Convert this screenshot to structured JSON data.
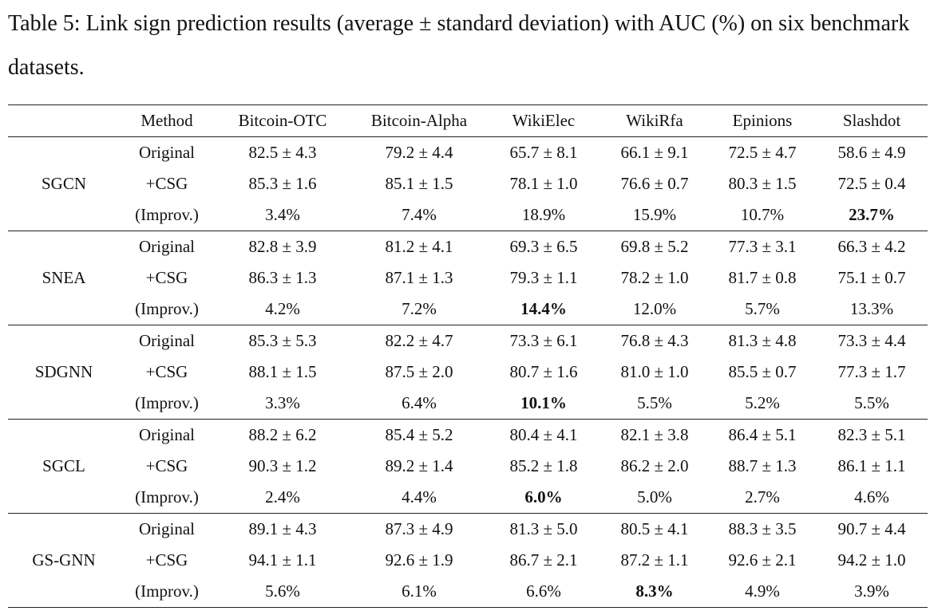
{
  "caption": "Table 5: Link sign prediction results (average ± standard deviation) with AUC (%) on six benchmark datasets.",
  "table": {
    "header": [
      "Method",
      "Bitcoin-OTC",
      "Bitcoin-Alpha",
      "WikiElec",
      "WikiRfa",
      "Epinions",
      "Slashdot"
    ],
    "groups": [
      {
        "model": "SGCN",
        "rows": [
          [
            "Original",
            "82.5 ± 4.3",
            "79.2 ± 4.4",
            "65.7 ± 8.1",
            "66.1 ± 9.1",
            "72.5 ± 4.7",
            "58.6 ± 4.9"
          ],
          [
            "+CSG",
            "85.3 ± 1.6",
            "85.1 ± 1.5",
            "78.1 ± 1.0",
            "76.6 ± 0.7",
            "80.3 ± 1.5",
            "72.5 ± 0.4"
          ],
          [
            "(Improv.)",
            "3.4%",
            "7.4%",
            "18.9%",
            "15.9%",
            "10.7%",
            "23.7%"
          ]
        ]
      },
      {
        "model": "SNEA",
        "rows": [
          [
            "Original",
            "82.8 ± 3.9",
            "81.2 ± 4.1",
            "69.3 ± 6.5",
            "69.8 ± 5.2",
            "77.3 ± 3.1",
            "66.3 ± 4.2"
          ],
          [
            "+CSG",
            "86.3 ± 1.3",
            "87.1 ± 1.3",
            "79.3 ± 1.1",
            "78.2 ± 1.0",
            "81.7 ± 0.8",
            "75.1 ± 0.7"
          ],
          [
            "(Improv.)",
            "4.2%",
            "7.2%",
            "14.4%",
            "12.0%",
            "5.7%",
            "13.3%"
          ]
        ]
      },
      {
        "model": "SDGNN",
        "rows": [
          [
            "Original",
            "85.3 ± 5.3",
            "82.2 ± 4.7",
            "73.3 ± 6.1",
            "76.8 ± 4.3",
            "81.3 ± 4.8",
            "73.3 ± 4.4"
          ],
          [
            "+CSG",
            "88.1 ± 1.5",
            "87.5 ± 2.0",
            "80.7 ± 1.6",
            "81.0 ± 1.0",
            "85.5 ± 0.7",
            "77.3 ± 1.7"
          ],
          [
            "(Improv.)",
            "3.3%",
            "6.4%",
            "10.1%",
            "5.5%",
            "5.2%",
            "5.5%"
          ]
        ]
      },
      {
        "model": "SGCL",
        "rows": [
          [
            "Original",
            "88.2 ± 6.2",
            "85.4 ± 5.2",
            "80.4 ± 4.1",
            "82.1 ± 3.8",
            "86.4 ± 5.1",
            "82.3 ± 5.1"
          ],
          [
            "+CSG",
            "90.3 ± 1.2",
            "89.2 ± 1.4",
            "85.2 ± 1.8",
            "86.2 ± 2.0",
            "88.7 ± 1.3",
            "86.1 ± 1.1"
          ],
          [
            "(Improv.)",
            "2.4%",
            "4.4%",
            "6.0%",
            "5.0%",
            "2.7%",
            "4.6%"
          ]
        ]
      },
      {
        "model": "GS-GNN",
        "rows": [
          [
            "Original",
            "89.1 ± 4.3",
            "87.3 ± 4.9",
            "81.3 ± 5.0",
            "80.5 ± 4.1",
            "88.3 ± 3.5",
            "90.7 ± 4.4"
          ],
          [
            "+CSG",
            "94.1 ± 1.1",
            "92.6 ± 1.9",
            "86.7 ± 2.1",
            "87.2 ± 1.1",
            "92.6 ± 2.1",
            "94.2 ± 1.0"
          ],
          [
            "(Improv.)",
            "5.6%",
            "6.1%",
            "6.6%",
            "8.3%",
            "4.9%",
            "3.9%"
          ]
        ]
      }
    ]
  }
}
